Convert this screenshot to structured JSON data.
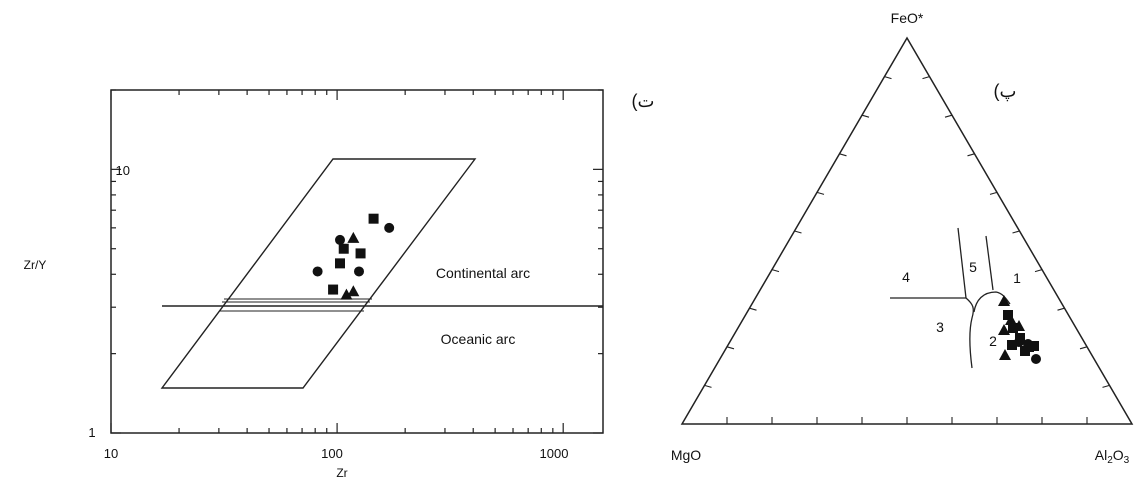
{
  "chart_data": [
    {
      "type": "scatter",
      "panel_label": "ت)",
      "xlabel": "Zr",
      "ylabel": "Zr/Y",
      "x_scale": "log",
      "y_scale": "log",
      "xlim": [
        10,
        1500
      ],
      "ylim": [
        1,
        20
      ],
      "x_ticks": [
        "10",
        "100",
        "1000"
      ],
      "y_ticks": [
        "1",
        "10"
      ],
      "field_labels": [
        "Continental arc",
        "Oceanic arc"
      ],
      "series": [
        {
          "marker": "circle",
          "points": [
            [
              82,
              4.1
            ],
            [
              103,
              5.4
            ],
            [
              125,
              4.1
            ],
            [
              170,
              6.0
            ]
          ]
        },
        {
          "marker": "square",
          "points": [
            [
              96,
              3.5
            ],
            [
              103,
              4.4
            ],
            [
              107,
              5.0
            ],
            [
              127,
              4.8
            ],
            [
              145,
              6.5
            ]
          ]
        },
        {
          "marker": "triangle",
          "points": [
            [
              110,
              3.35
            ],
            [
              118,
              3.45
            ],
            [
              118,
              5.5
            ]
          ]
        }
      ],
      "grid": false
    },
    {
      "type": "ternary",
      "panel_label": "پ)",
      "apex_labels": {
        "top": "FeO*",
        "left": "MgO",
        "right": "Al2O3"
      },
      "field_labels": [
        "1",
        "2",
        "3",
        "4",
        "5"
      ],
      "series": [
        {
          "marker": "circle",
          "count": 3
        },
        {
          "marker": "square",
          "count": 7
        },
        {
          "marker": "triangle",
          "count": 5
        }
      ]
    }
  ]
}
